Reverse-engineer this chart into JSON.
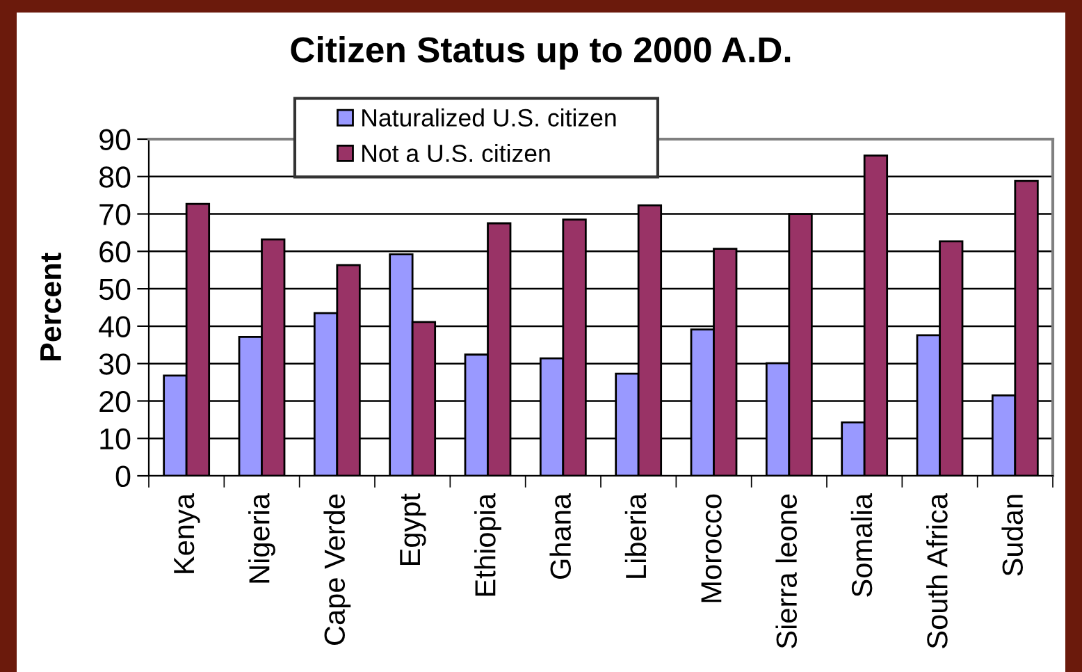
{
  "chart_data": {
    "type": "bar",
    "title": "Citizen Status up to 2000 A.D.",
    "ylabel": "Percent",
    "categories": [
      "Kenya",
      "Nigeria",
      "Cape Verde",
      "Egypt",
      "Ethiopia",
      "Ghana",
      "Liberia",
      "Morocco",
      "Sierra leone",
      "Somalia",
      "South Africa",
      "Sudan"
    ],
    "series": [
      {
        "name": "Naturalized U.S. citizen",
        "color": "#9999ff",
        "values": [
          26.8,
          37.1,
          43.5,
          59.2,
          32.4,
          31.4,
          27.3,
          39.1,
          30.1,
          14.3,
          37.6,
          21.5
        ]
      },
      {
        "name": "Not a U.S. citizen",
        "color": "#993366",
        "values": [
          72.7,
          63.2,
          56.3,
          41.1,
          67.5,
          68.5,
          72.3,
          60.7,
          70.0,
          85.6,
          62.7,
          78.8
        ]
      }
    ],
    "ylim": [
      0,
      90
    ],
    "yticks": [
      0,
      10,
      20,
      30,
      40,
      50,
      60,
      70,
      80,
      90
    ],
    "grid": "y",
    "legend": "top"
  }
}
